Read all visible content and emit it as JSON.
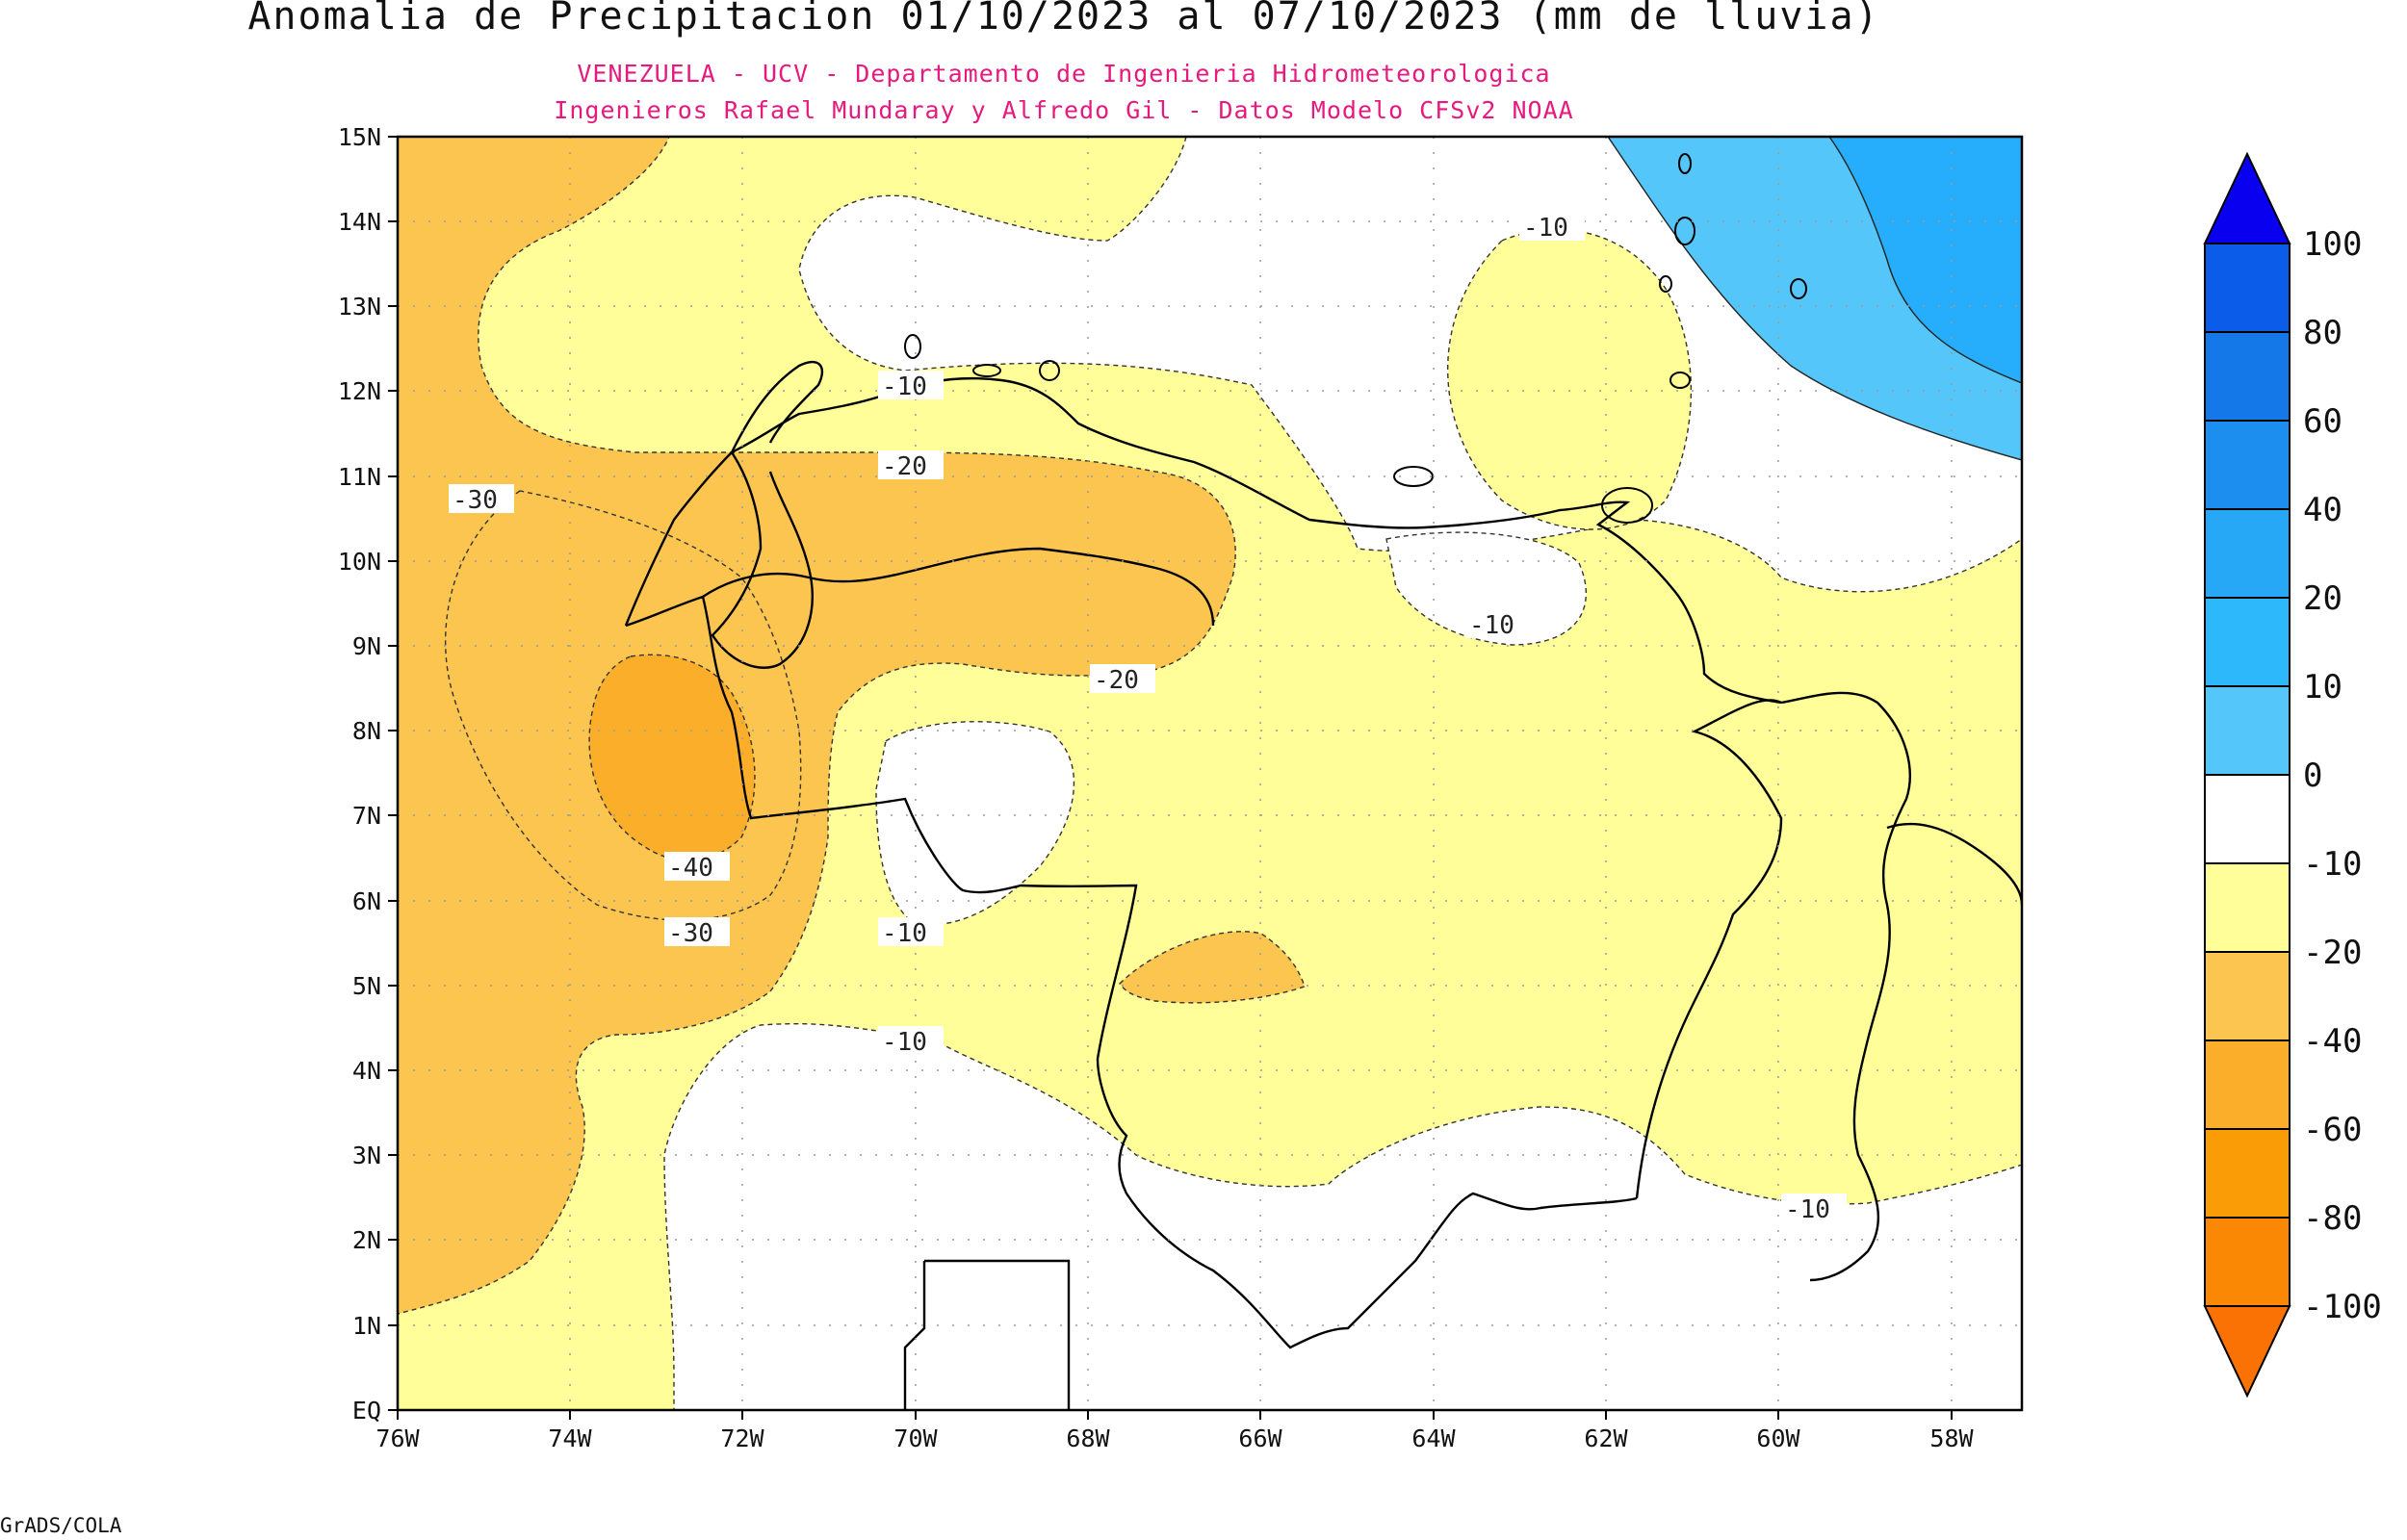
{
  "title": "Anomalia de Precipitacion 01/10/2023 al 07/10/2023 (mm de lluvia)",
  "subtitle_line1": "VENEZUELA - UCV - Departamento de Ingenieria Hidrometeorologica",
  "subtitle_line2": "Ingenieros Rafael Mundaray y Alfredo Gil - Datos Modelo CFSv2 NOAA",
  "footer": "GrADS/COLA",
  "map": {
    "lon_labels": [
      "76W",
      "74W",
      "72W",
      "70W",
      "68W",
      "66W",
      "64W",
      "62W",
      "60W",
      "58W"
    ],
    "lat_labels": [
      "EQ",
      "1N",
      "2N",
      "3N",
      "4N",
      "5N",
      "6N",
      "7N",
      "8N",
      "9N",
      "10N",
      "11N",
      "12N",
      "13N",
      "14N",
      "15N"
    ],
    "contour_labels": [
      {
        "text": "-30"
      },
      {
        "text": "-10"
      },
      {
        "text": "-20"
      },
      {
        "text": "-20"
      },
      {
        "text": "-10"
      },
      {
        "text": "-10"
      },
      {
        "text": "-40"
      },
      {
        "text": "-30"
      },
      {
        "text": "-10"
      },
      {
        "text": "-10"
      },
      {
        "text": "-10"
      }
    ]
  },
  "colorbar": {
    "labels": [
      "100",
      "80",
      "60",
      "40",
      "20",
      "10",
      "0",
      "-10",
      "-20",
      "-40",
      "-60",
      "-80",
      "-100"
    ],
    "colors": [
      "#0a00f0",
      "#0b5ce8",
      "#1478e8",
      "#1c8ef0",
      "#26a8f6",
      "#2cb8fa",
      "#54c6fa",
      "#ffffff",
      "#fffe99",
      "#fcc550",
      "#fbae2a",
      "#fa9c05",
      "#fb8805",
      "#fb7204"
    ]
  }
}
